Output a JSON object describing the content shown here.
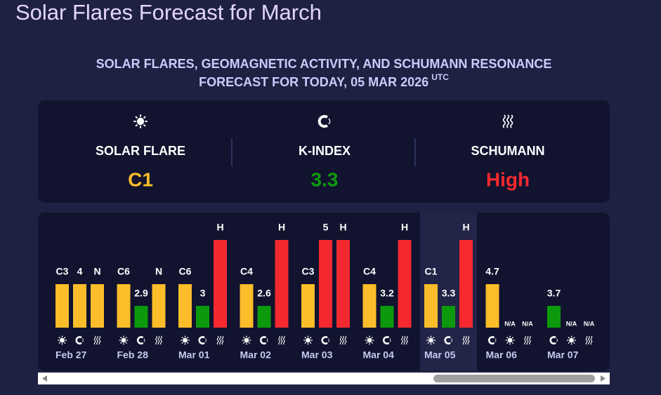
{
  "header": {
    "title": "Solar Flares Forecast for March",
    "subtitle_line1": "SOLAR FLARES, GEOMAGNETIC ACTIVITY, AND SCHUMANN RESONANCE",
    "subtitle_line2": "FORECAST FOR TODAY, 05 MAR 2026",
    "subtitle_sup": "UTC"
  },
  "summary": {
    "solar": {
      "label": "SOLAR FLARE",
      "value": "C1",
      "color": "#fbbd2a"
    },
    "k_index": {
      "label": "K-INDEX",
      "value": "3.3",
      "color": "#0c9a0c"
    },
    "schumann": {
      "label": "SCHUMANN",
      "value": "High",
      "color": "#f5292f"
    }
  },
  "days": [
    {
      "date": "Feb 27",
      "items": {
        "solar": {
          "label": "C3",
          "color": "#fbbd2a"
        },
        "k_index": {
          "label": "4",
          "color": "#fbbd2a"
        },
        "schumann": {
          "label": "N",
          "color": "#fbbd2a"
        }
      }
    },
    {
      "date": "Feb 28",
      "items": {
        "solar": {
          "label": "C6",
          "color": "#fbbd2a"
        },
        "k_index": {
          "label": "2.9",
          "color": "#0c9a0c"
        },
        "schumann": {
          "label": "N",
          "color": "#fbbd2a"
        }
      }
    },
    {
      "date": "Mar 01",
      "items": {
        "solar": {
          "label": "C6",
          "color": "#fbbd2a"
        },
        "k_index": {
          "label": "3",
          "color": "#0c9a0c"
        },
        "schumann": {
          "label": "H",
          "color": "#f5292f"
        }
      }
    },
    {
      "date": "Mar 02",
      "items": {
        "solar": {
          "label": "C4",
          "color": "#fbbd2a"
        },
        "k_index": {
          "label": "2.6",
          "color": "#0c9a0c"
        },
        "schumann": {
          "label": "H",
          "color": "#f5292f"
        }
      }
    },
    {
      "date": "Mar 03",
      "items": {
        "solar": {
          "label": "C3",
          "color": "#fbbd2a"
        },
        "k_index": {
          "label": "5",
          "color": "#f5292f"
        },
        "schumann": {
          "label": "H",
          "color": "#f5292f"
        }
      }
    },
    {
      "date": "Mar 04",
      "items": {
        "solar": {
          "label": "C4",
          "color": "#fbbd2a"
        },
        "k_index": {
          "label": "3.2",
          "color": "#0c9a0c"
        },
        "schumann": {
          "label": "H",
          "color": "#f5292f"
        }
      }
    },
    {
      "date": "Mar 05",
      "highlight": true,
      "items": {
        "solar": {
          "label": "C1",
          "color": "#fbbd2a"
        },
        "k_index": {
          "label": "3.3",
          "color": "#0c9a0c"
        },
        "schumann": {
          "label": "H",
          "color": "#f5292f"
        }
      }
    },
    {
      "date": "Mar 06",
      "items": {
        "k_index": {
          "label": "4.7",
          "color": "#fbbd2a"
        },
        "solar": {
          "label": "N/A"
        },
        "schumann": {
          "label": "N/A"
        }
      }
    },
    {
      "date": "Mar 07",
      "items": {
        "k_index": {
          "label": "3.7",
          "color": "#0c9a0c"
        },
        "solar": {
          "label": "N/A"
        },
        "schumann": {
          "label": "N/A"
        }
      }
    }
  ]
}
